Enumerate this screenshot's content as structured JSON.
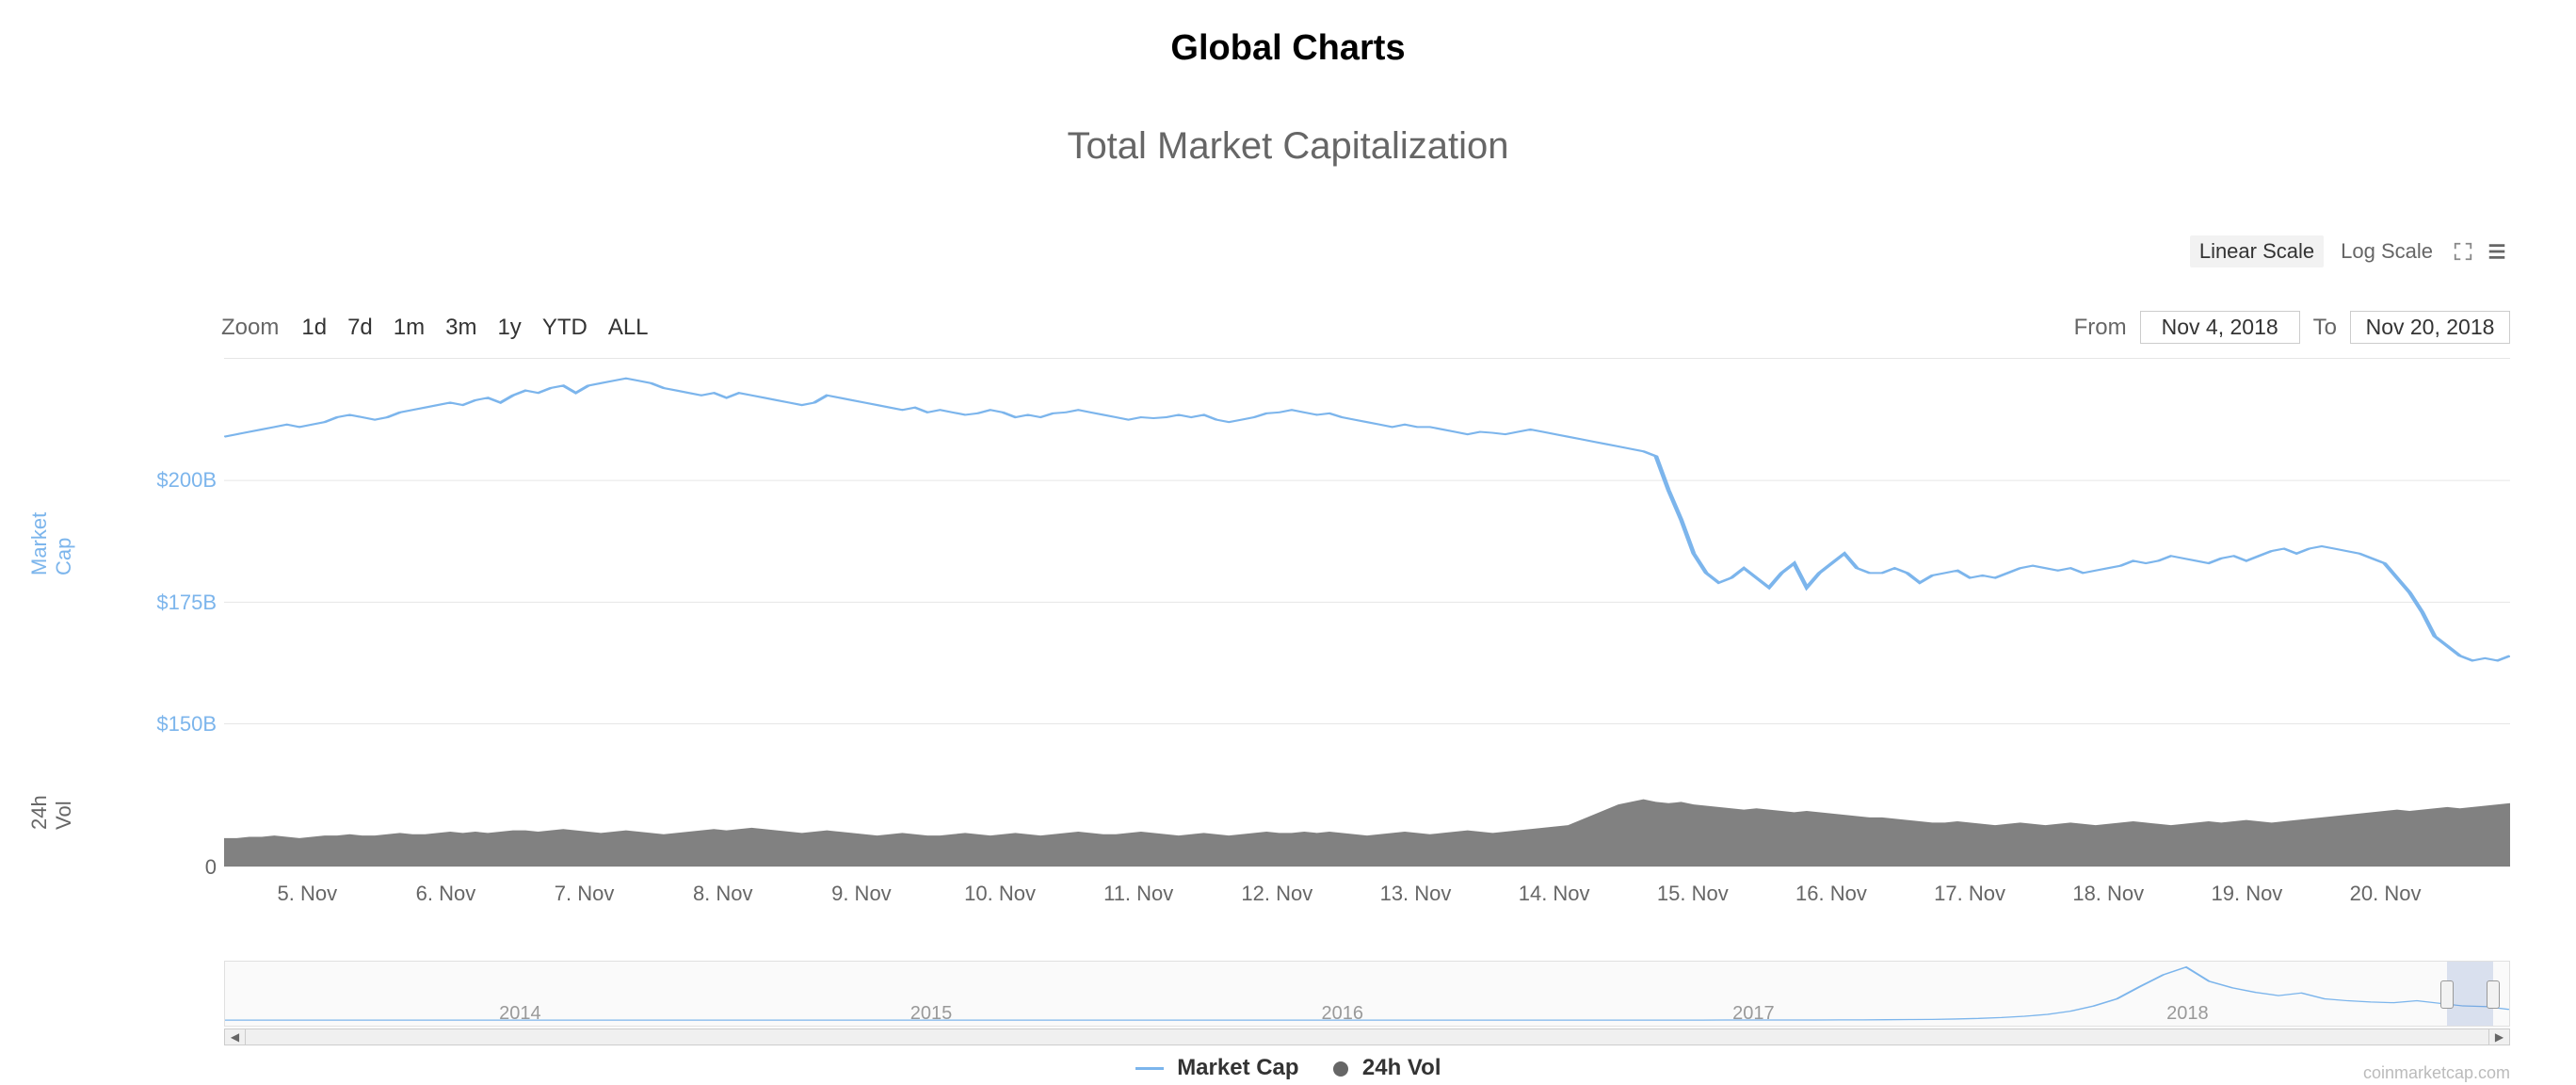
{
  "page_title": "Global Charts",
  "chart": {
    "subtitle": "Total Market Capitalization",
    "type": "line_plus_area",
    "colors": {
      "line": "#7cb5ec",
      "volume_fill": "#6b6b6b",
      "grid": "#e6e6e6",
      "background": "#ffffff",
      "axis_text_primary": "#7cb5ec",
      "axis_text_secondary": "#666666"
    },
    "font": {
      "family": "Helvetica Neue",
      "title_size": 38,
      "subtitle_size": 40,
      "tick_size": 22
    },
    "scale_controls": {
      "linear_label": "Linear Scale",
      "log_label": "Log Scale",
      "active": "linear"
    },
    "zoom": {
      "label": "Zoom",
      "options": [
        "1d",
        "7d",
        "1m",
        "3m",
        "1y",
        "YTD",
        "ALL"
      ]
    },
    "date_range": {
      "from_label": "From",
      "from_value": "Nov 4, 2018",
      "to_label": "To",
      "to_value": "Nov 20, 2018"
    },
    "y_axis_mcap": {
      "title": "Market Cap",
      "ticks": [
        {
          "label": "$200B",
          "value": 200
        },
        {
          "label": "$175B",
          "value": 175
        },
        {
          "label": "$150B",
          "value": 150
        }
      ],
      "ylim": [
        140,
        225
      ]
    },
    "y_axis_vol": {
      "title": "24h Vol",
      "ticks": [
        {
          "label": "0",
          "value": 0
        }
      ],
      "ylim_billions": [
        0,
        40
      ]
    },
    "x_axis": {
      "ticks": [
        "5. Nov",
        "6. Nov",
        "7. Nov",
        "8. Nov",
        "9. Nov",
        "10. Nov",
        "11. Nov",
        "12. Nov",
        "13. Nov",
        "14. Nov",
        "15. Nov",
        "16. Nov",
        "17. Nov",
        "18. Nov",
        "19. Nov",
        "20. Nov"
      ],
      "domain_days": 16.5
    },
    "series_marketcap_billion": [
      209,
      209.5,
      210,
      210.5,
      211,
      211.5,
      211,
      211.5,
      212,
      213,
      213.5,
      213,
      212.5,
      213,
      214,
      214.5,
      215,
      215.5,
      216,
      215.5,
      216.5,
      217,
      216,
      217.5,
      218.5,
      218,
      219,
      219.5,
      218,
      219.5,
      220,
      220.5,
      221,
      220.5,
      220,
      219,
      218.5,
      218,
      217.5,
      218,
      217,
      218,
      217.5,
      217,
      216.5,
      216,
      215.5,
      216,
      217.5,
      217,
      216.5,
      216,
      215.5,
      215,
      214.5,
      215,
      214,
      214.5,
      214,
      213.5,
      213.8,
      214.5,
      214,
      213,
      213.5,
      213,
      213.8,
      214,
      214.5,
      214,
      213.5,
      213,
      212.5,
      213,
      212.8,
      213,
      213.5,
      213,
      213.5,
      212.5,
      212,
      212.5,
      213,
      213.8,
      214,
      214.5,
      214,
      213.5,
      213.8,
      213,
      212.5,
      212,
      211.5,
      211,
      211.5,
      211,
      211,
      210.5,
      210,
      209.5,
      210,
      209.8,
      209.5,
      210,
      210.5,
      210,
      209.5,
      209,
      208.5,
      208,
      207.5,
      207,
      206.5,
      206,
      205,
      198,
      192,
      185,
      181,
      179,
      180,
      182,
      180,
      178,
      181,
      183,
      178,
      181,
      183,
      185,
      182,
      181,
      181,
      182,
      181,
      179,
      180.5,
      181,
      181.5,
      180,
      180.5,
      180,
      181,
      182,
      182.5,
      182,
      181.5,
      182,
      181,
      181.5,
      182,
      182.5,
      183.5,
      183,
      183.5,
      184.5,
      184,
      183.5,
      183,
      184,
      184.5,
      183.5,
      184.5,
      185.5,
      186,
      185,
      186,
      186.5,
      186,
      185.5,
      185,
      184,
      183,
      180,
      177,
      173,
      168,
      166,
      164,
      163,
      163.5,
      163,
      164
    ],
    "series_volume_billion": [
      11,
      11,
      11.5,
      11.5,
      12,
      11.5,
      11,
      11.5,
      12,
      12,
      12.5,
      12,
      12,
      12.5,
      13,
      12.5,
      12.5,
      13,
      13.5,
      13,
      13.5,
      13,
      13.5,
      14,
      14,
      13.5,
      14,
      14.5,
      14,
      13.5,
      13,
      13.5,
      14,
      13.5,
      13,
      12.5,
      13,
      13.5,
      14,
      14.5,
      14,
      14.5,
      15,
      14.5,
      14,
      13.5,
      13,
      13.5,
      14,
      13.5,
      13,
      12.5,
      12,
      12.5,
      13,
      12.5,
      12,
      12,
      12.5,
      13,
      12.5,
      12,
      12.5,
      13,
      12.5,
      12,
      12.5,
      13,
      13.5,
      13,
      12.5,
      12.5,
      13,
      13.5,
      13,
      12.5,
      12,
      12.5,
      13,
      12.5,
      12,
      12.5,
      13,
      13.5,
      13,
      13,
      13.5,
      13,
      13.5,
      13,
      12.5,
      12,
      12.5,
      13,
      13.5,
      13,
      12.5,
      13,
      13.5,
      14,
      13.5,
      13,
      13.5,
      14,
      14.5,
      15,
      15.5,
      16,
      18,
      20,
      22,
      24,
      25,
      26,
      25,
      24.5,
      25,
      24,
      23.5,
      23,
      22.5,
      22,
      22.5,
      22,
      21.5,
      21,
      21.5,
      21,
      20.5,
      20,
      19.5,
      19,
      19,
      18.5,
      18,
      17.5,
      17,
      17,
      17.5,
      17,
      16.5,
      16,
      16.5,
      17,
      16.5,
      16,
      16.5,
      17,
      16.5,
      16,
      16.5,
      17,
      17.5,
      17,
      16.5,
      16,
      16.5,
      17,
      17.5,
      17,
      17.5,
      18,
      17.5,
      17,
      17.5,
      18,
      18.5,
      19,
      19.5,
      20,
      20.5,
      21,
      21.5,
      22,
      21.5,
      22,
      22.5,
      23,
      22.5,
      23,
      23.5,
      24,
      24.5
    ],
    "navigator": {
      "years": [
        "2014",
        "2015",
        "2016",
        "2017",
        "2018"
      ],
      "year_positions_pct": [
        12,
        30,
        48,
        66,
        85
      ],
      "mask_left_pct": 97.3,
      "mask_right_pct": 99.3,
      "allcap_billion": [
        1,
        1,
        1,
        1,
        1,
        1,
        1,
        1,
        1,
        1,
        1,
        1,
        1,
        1,
        1,
        1,
        1,
        1,
        1,
        1,
        1,
        1,
        1,
        1,
        1,
        1,
        1,
        1,
        1,
        1,
        1,
        1,
        1,
        1,
        1,
        1,
        1,
        1,
        1,
        1,
        1,
        1,
        1,
        1,
        1,
        1,
        1,
        1,
        1,
        1,
        1,
        1,
        1,
        1,
        1,
        1,
        1,
        1,
        1,
        1,
        1,
        1,
        1,
        1,
        1,
        2,
        2,
        2,
        3,
        3,
        4,
        5,
        7,
        9,
        12,
        18,
        27,
        40,
        60,
        90,
        140,
        220,
        330,
        520,
        700,
        820,
        600,
        500,
        430,
        380,
        420,
        330,
        300,
        280,
        270,
        300,
        260,
        220,
        210,
        165
      ]
    },
    "legend": {
      "marketcap_label": "Market Cap",
      "volume_label": "24h Vol"
    },
    "attribution": "coinmarketcap.com"
  }
}
